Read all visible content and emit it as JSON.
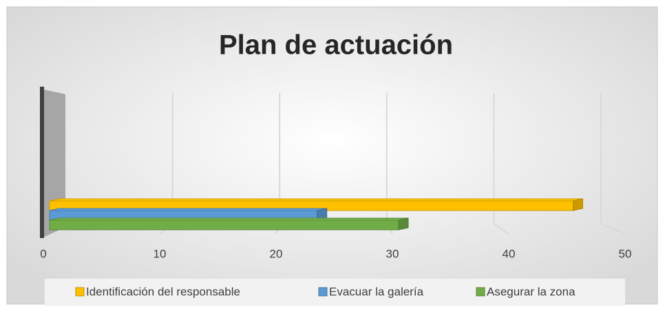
{
  "chart_data": {
    "type": "bar",
    "orientation": "horizontal",
    "title": "Plan de actuación",
    "categories": [
      null
    ],
    "series": [
      {
        "name": "Identificación del responsable",
        "color": "#ffc000",
        "values": [
          45
        ]
      },
      {
        "name": "Evacuar la galería",
        "color": "#5b9bd5",
        "values": [
          23
        ]
      },
      {
        "name": "Asegurar la zona",
        "color": "#70ad47",
        "values": [
          30
        ]
      }
    ],
    "xlim": [
      0,
      50
    ],
    "xticks": [
      0,
      10,
      20,
      30,
      40,
      50
    ],
    "grid": true,
    "legend": "bottom"
  }
}
